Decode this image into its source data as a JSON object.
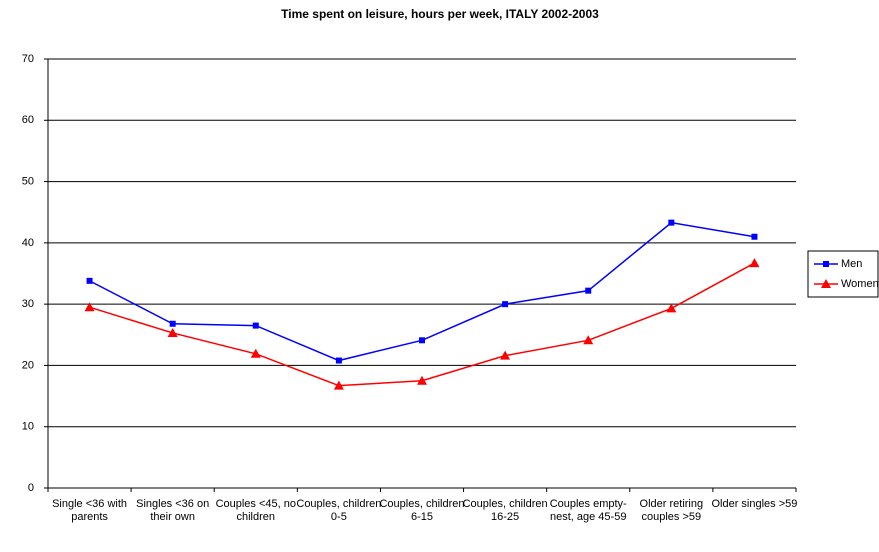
{
  "chart_data": {
    "type": "line",
    "title": "Time spent on leisure, hours per week, ITALY 2002-2003",
    "categories": [
      "Single <36 with parents",
      "Singles <36 on their own",
      "Couples <45, no children",
      "Couples, children 0-5",
      "Couples, children 6-15",
      "Couples, children 16-25",
      "Couples empty-nest, age 45-59",
      "Older retiring couples >59",
      "Older singles >59"
    ],
    "series": [
      {
        "name": "Men",
        "color": "#0000ff",
        "marker": "square",
        "values": [
          33.8,
          26.8,
          26.5,
          20.8,
          24.1,
          30.0,
          32.2,
          43.3,
          41.0
        ]
      },
      {
        "name": "Women",
        "color": "#ff0000",
        "marker": "triangle",
        "values": [
          29.5,
          25.3,
          21.9,
          16.7,
          17.5,
          21.6,
          24.1,
          29.3,
          36.7
        ]
      }
    ],
    "ylim": [
      0,
      70
    ],
    "yticks": [
      0,
      10,
      20,
      30,
      40,
      50,
      60,
      70
    ],
    "grid": true,
    "legend": "right"
  }
}
